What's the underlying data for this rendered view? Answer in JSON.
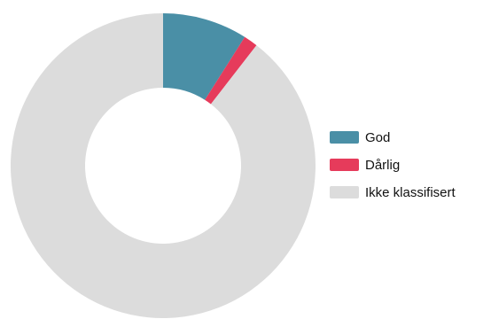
{
  "chart_data": {
    "type": "donut",
    "title": "",
    "categories": [
      "God",
      "Dårlig",
      "Ikke klassifisert"
    ],
    "values": [
      9,
      1.5,
      89.5
    ],
    "colors": [
      "#4a8fa6",
      "#e63b5b",
      "#dcdcdc"
    ],
    "legend_position": "right",
    "start_angle": "12 o'clock",
    "direction": "clockwise"
  }
}
